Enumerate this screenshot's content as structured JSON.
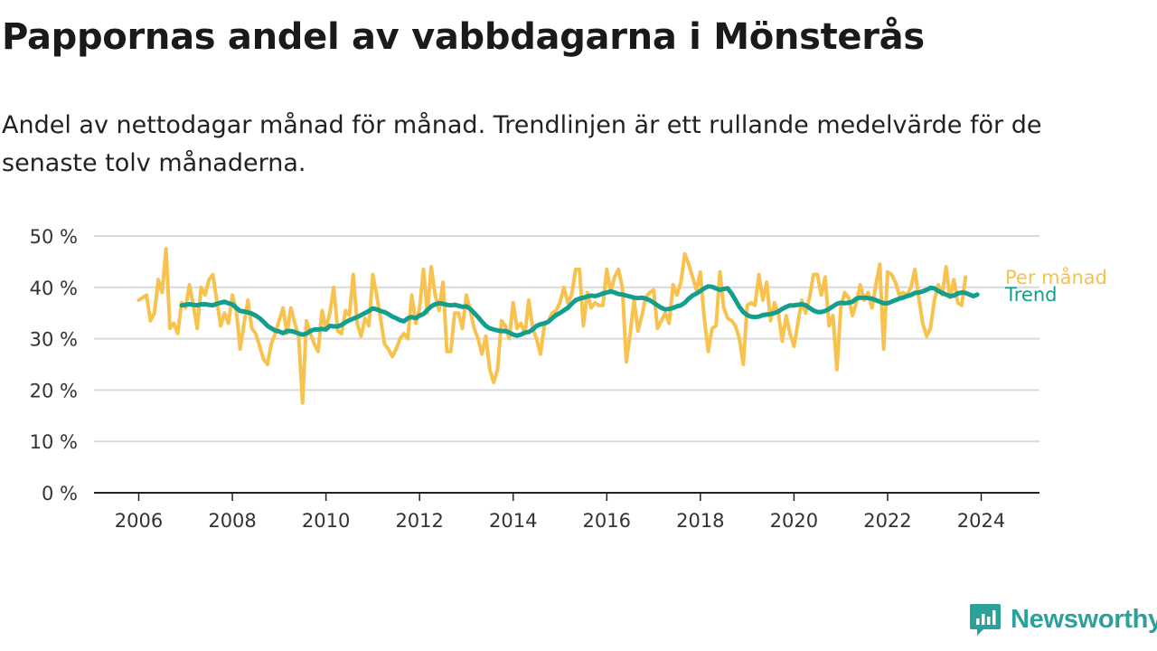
{
  "title": "Pappornas andel av vabbdagarna i Mönsterås",
  "subtitle": "Andel av nettodagar månad för månad. Trendlinjen är ett rullande medelvärde för de senaste tolv månaderna.",
  "brand": {
    "name": "Newsworthy",
    "icon": "newsworthy-logo-icon"
  },
  "colors": {
    "monthly": "#f8c24e",
    "trend": "#149e8e",
    "grid": "#d9d9d9",
    "axis": "#222222"
  },
  "chart_data": {
    "type": "line",
    "title": "Pappornas andel av vabbdagarna i Mönsterås",
    "xlabel": "",
    "ylabel": "",
    "xlim": [
      "2006-01",
      "2024-12"
    ],
    "ylim": [
      0,
      50
    ],
    "yticks": [
      0,
      10,
      20,
      30,
      40,
      50
    ],
    "ytick_labels": [
      "0 %",
      "10 %",
      "20 %",
      "30 %",
      "40 %",
      "50 %"
    ],
    "xticks": [
      "2006",
      "2008",
      "2010",
      "2012",
      "2014",
      "2016",
      "2018",
      "2020",
      "2022",
      "2024"
    ],
    "grid": true,
    "legend": "inline-right",
    "start": "2006-01",
    "series": [
      {
        "name": "Per månad",
        "values": [
          37.5,
          38,
          38.5,
          33.5,
          35,
          41.5,
          39,
          47.5,
          32,
          33,
          31,
          37,
          36,
          40.5,
          36.5,
          32,
          40,
          38.5,
          41.5,
          42.5,
          37.5,
          32.5,
          35,
          33,
          38.5,
          35.5,
          28,
          33,
          37.5,
          32,
          31,
          28.5,
          26,
          25,
          29,
          31,
          33.5,
          36,
          31,
          36,
          33,
          30.5,
          17.5,
          33.5,
          31,
          29,
          27.5,
          35.5,
          32,
          35,
          40,
          31.5,
          31,
          35.5,
          34.5,
          42.5,
          33,
          30.5,
          34,
          32.5,
          42.5,
          38.5,
          34,
          29,
          28,
          26.5,
          28,
          30,
          31,
          30,
          38.5,
          33,
          36,
          43.5,
          35,
          44,
          38.5,
          35.5,
          41,
          27.5,
          27.5,
          35,
          35,
          32,
          38.5,
          35.5,
          32,
          30,
          27,
          30.5,
          24,
          21.5,
          24,
          33.5,
          32.5,
          30,
          37,
          32,
          33,
          31,
          37.5,
          32,
          30,
          27,
          32.5,
          33.5,
          35,
          35.5,
          37,
          40,
          37,
          38.5,
          43.5,
          43.5,
          32.5,
          39,
          36,
          37,
          36.5,
          36.5,
          43.5,
          39,
          42,
          43.5,
          40,
          25.5,
          31,
          37.5,
          31.5,
          34.5,
          38,
          39,
          39.5,
          32,
          33.5,
          35,
          33,
          40.5,
          38.5,
          41,
          46.5,
          44.5,
          42,
          39.5,
          43,
          34,
          27.5,
          32,
          32.5,
          43,
          36,
          34,
          33.5,
          32.5,
          30,
          25,
          36.5,
          37,
          36.5,
          42.5,
          37.5,
          41,
          33.5,
          37,
          35,
          29.5,
          34.5,
          31,
          28.5,
          33,
          37.5,
          35,
          38,
          42.5,
          42.5,
          38.5,
          42,
          32.5,
          34.5,
          24,
          36,
          39,
          38,
          34.5,
          37,
          40.5,
          37.5,
          39,
          36,
          40.5,
          44.5,
          28,
          43,
          42.5,
          41,
          38.5,
          39,
          38.5,
          40,
          43.5,
          38,
          33,
          30.5,
          32,
          37.5,
          40.5,
          38.5,
          44,
          38,
          41.5,
          37,
          36.5,
          42
        ]
      },
      {
        "name": "Trend",
        "start": "2006-12",
        "values": [
          36.5,
          36.6,
          36.7,
          36.6,
          36.5,
          36.7,
          36.7,
          36.6,
          36.5,
          36.8,
          37.0,
          37.2,
          36.9,
          36.7,
          36.0,
          35.4,
          35.3,
          35.1,
          34.9,
          34.5,
          34.0,
          33.3,
          32.5,
          32.0,
          31.6,
          31.4,
          31.1,
          31.5,
          31.5,
          31.3,
          31.0,
          30.8,
          31.0,
          31.5,
          31.8,
          31.8,
          31.9,
          31.8,
          32.5,
          32.4,
          32.4,
          32.7,
          33.2,
          33.6,
          33.9,
          34.2,
          34.6,
          35.0,
          35.4,
          35.9,
          35.7,
          35.4,
          35.2,
          34.8,
          34.3,
          34.0,
          33.6,
          33.4,
          34.0,
          34.2,
          34.0,
          34.5,
          34.8,
          35.6,
          36.3,
          36.7,
          36.9,
          36.8,
          36.6,
          36.5,
          36.6,
          36.4,
          36.2,
          36.3,
          35.8,
          35.0,
          34.2,
          33.3,
          32.5,
          32.0,
          31.8,
          31.6,
          31.5,
          31.5,
          31.2,
          30.8,
          30.6,
          30.8,
          31.2,
          31.3,
          31.8,
          32.5,
          32.8,
          33.0,
          33.3,
          34.0,
          34.6,
          35.0,
          35.5,
          36.0,
          36.8,
          37.5,
          37.8,
          38.0,
          38.2,
          38.4,
          38.3,
          38.5,
          38.8,
          39.0,
          39.2,
          39.0,
          38.7,
          38.6,
          38.4,
          38.2,
          38.0,
          37.9,
          38.0,
          37.8,
          37.5,
          37.0,
          36.5,
          36.0,
          35.7,
          35.8,
          36.0,
          36.3,
          36.5,
          37.0,
          37.8,
          38.4,
          38.8,
          39.3,
          39.8,
          40.2,
          40.1,
          39.8,
          39.5,
          39.7,
          39.8,
          38.8,
          37.5,
          36.2,
          35.2,
          34.6,
          34.3,
          34.2,
          34.3,
          34.6,
          34.7,
          34.8,
          35.0,
          35.3,
          35.8,
          36.2,
          36.5,
          36.5,
          36.6,
          36.7,
          36.5,
          36.0,
          35.5,
          35.2,
          35.2,
          35.4,
          35.8,
          36.3,
          36.8,
          37.0,
          36.9,
          37.0,
          37.2,
          37.8,
          38.0,
          38.0,
          37.9,
          37.8,
          37.5,
          37.2,
          36.9,
          36.9,
          37.2,
          37.5,
          37.8,
          38.0,
          38.3,
          38.5,
          38.9,
          39.0,
          39.2,
          39.5,
          39.9,
          39.8,
          39.3,
          38.9,
          38.6,
          38.3,
          38.4,
          38.8,
          39.0,
          38.9,
          38.6,
          38.3,
          38.6
        ]
      }
    ]
  }
}
